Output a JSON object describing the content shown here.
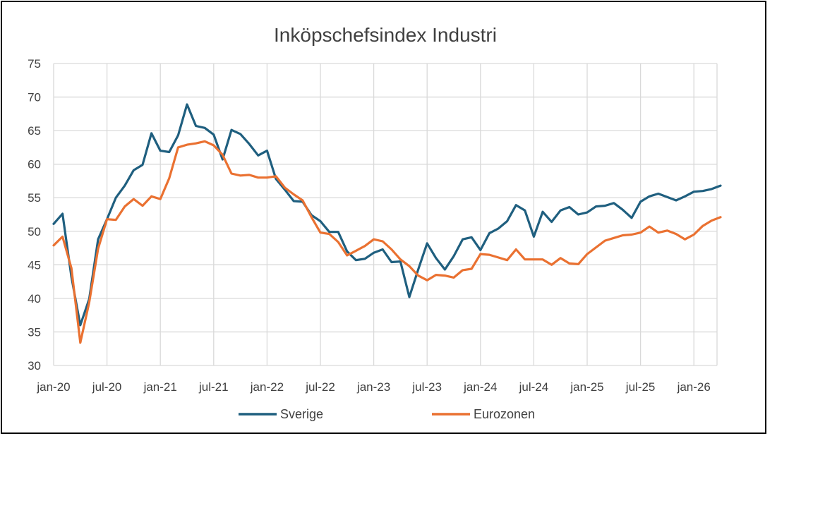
{
  "chart_data": {
    "type": "line",
    "title": "Inköpschefsindex Industri",
    "xlabel": "",
    "ylabel": "",
    "ylim": [
      30,
      75
    ],
    "yticks": [
      30,
      35,
      40,
      45,
      50,
      55,
      60,
      65,
      70,
      75
    ],
    "xtick_labels": [
      "jan-20",
      "jul-20",
      "jan-21",
      "jul-21",
      "jan-22",
      "jul-22",
      "jan-23",
      "jul-23",
      "jan-24",
      "jul-24",
      "jan-25",
      "jul-25",
      "jan-26"
    ],
    "x_start": "jan-20",
    "x_end": "mar-26",
    "grid": true,
    "legend_position": "bottom",
    "series": [
      {
        "name": "Sverige",
        "color": "#1f5f7f",
        "values": [
          51.1,
          52.6,
          43.2,
          36.0,
          39.9,
          48.8,
          51.8,
          55.0,
          56.8,
          59.1,
          59.9,
          64.6,
          62.0,
          61.8,
          64.3,
          68.9,
          65.7,
          65.4,
          64.4,
          60.7,
          65.1,
          64.5,
          63.0,
          61.3,
          62.0,
          57.8,
          56.2,
          54.5,
          54.4,
          52.4,
          51.5,
          49.9,
          49.9,
          47.0,
          45.7,
          45.9,
          46.8,
          47.3,
          45.4,
          45.5,
          40.2,
          44.3,
          48.2,
          46.0,
          44.3,
          46.3,
          48.8,
          49.1,
          47.2,
          49.7,
          50.4,
          51.5,
          53.9,
          53.1,
          49.2,
          52.9,
          51.4,
          53.1,
          53.6,
          52.5,
          52.8,
          53.7,
          53.8,
          54.2,
          53.2,
          52.0,
          54.4,
          55.2,
          55.6,
          55.1,
          54.6,
          55.2,
          55.9,
          56.0,
          56.3,
          56.8
        ]
      },
      {
        "name": "Eurozonen",
        "color": "#ea7131",
        "values": [
          47.9,
          49.2,
          44.5,
          33.4,
          39.4,
          47.4,
          51.8,
          51.7,
          53.7,
          54.8,
          53.8,
          55.2,
          54.8,
          57.9,
          62.5,
          62.9,
          63.1,
          63.4,
          62.8,
          61.4,
          58.6,
          58.3,
          58.4,
          58.0,
          58.0,
          58.2,
          56.5,
          55.5,
          54.6,
          52.1,
          49.8,
          49.6,
          48.4,
          46.4,
          47.1,
          47.8,
          48.8,
          48.5,
          47.3,
          45.8,
          44.8,
          43.4,
          42.7,
          43.5,
          43.4,
          43.1,
          44.2,
          44.4,
          46.6,
          46.5,
          46.1,
          45.7,
          47.3,
          45.8,
          45.8,
          45.8,
          45.0,
          46.0,
          45.2,
          45.1,
          46.6,
          47.6,
          48.6,
          49.0,
          49.4,
          49.5,
          49.8,
          50.7,
          49.8,
          50.1,
          49.6,
          48.8,
          49.5,
          50.8,
          51.6,
          52.1
        ]
      }
    ]
  }
}
